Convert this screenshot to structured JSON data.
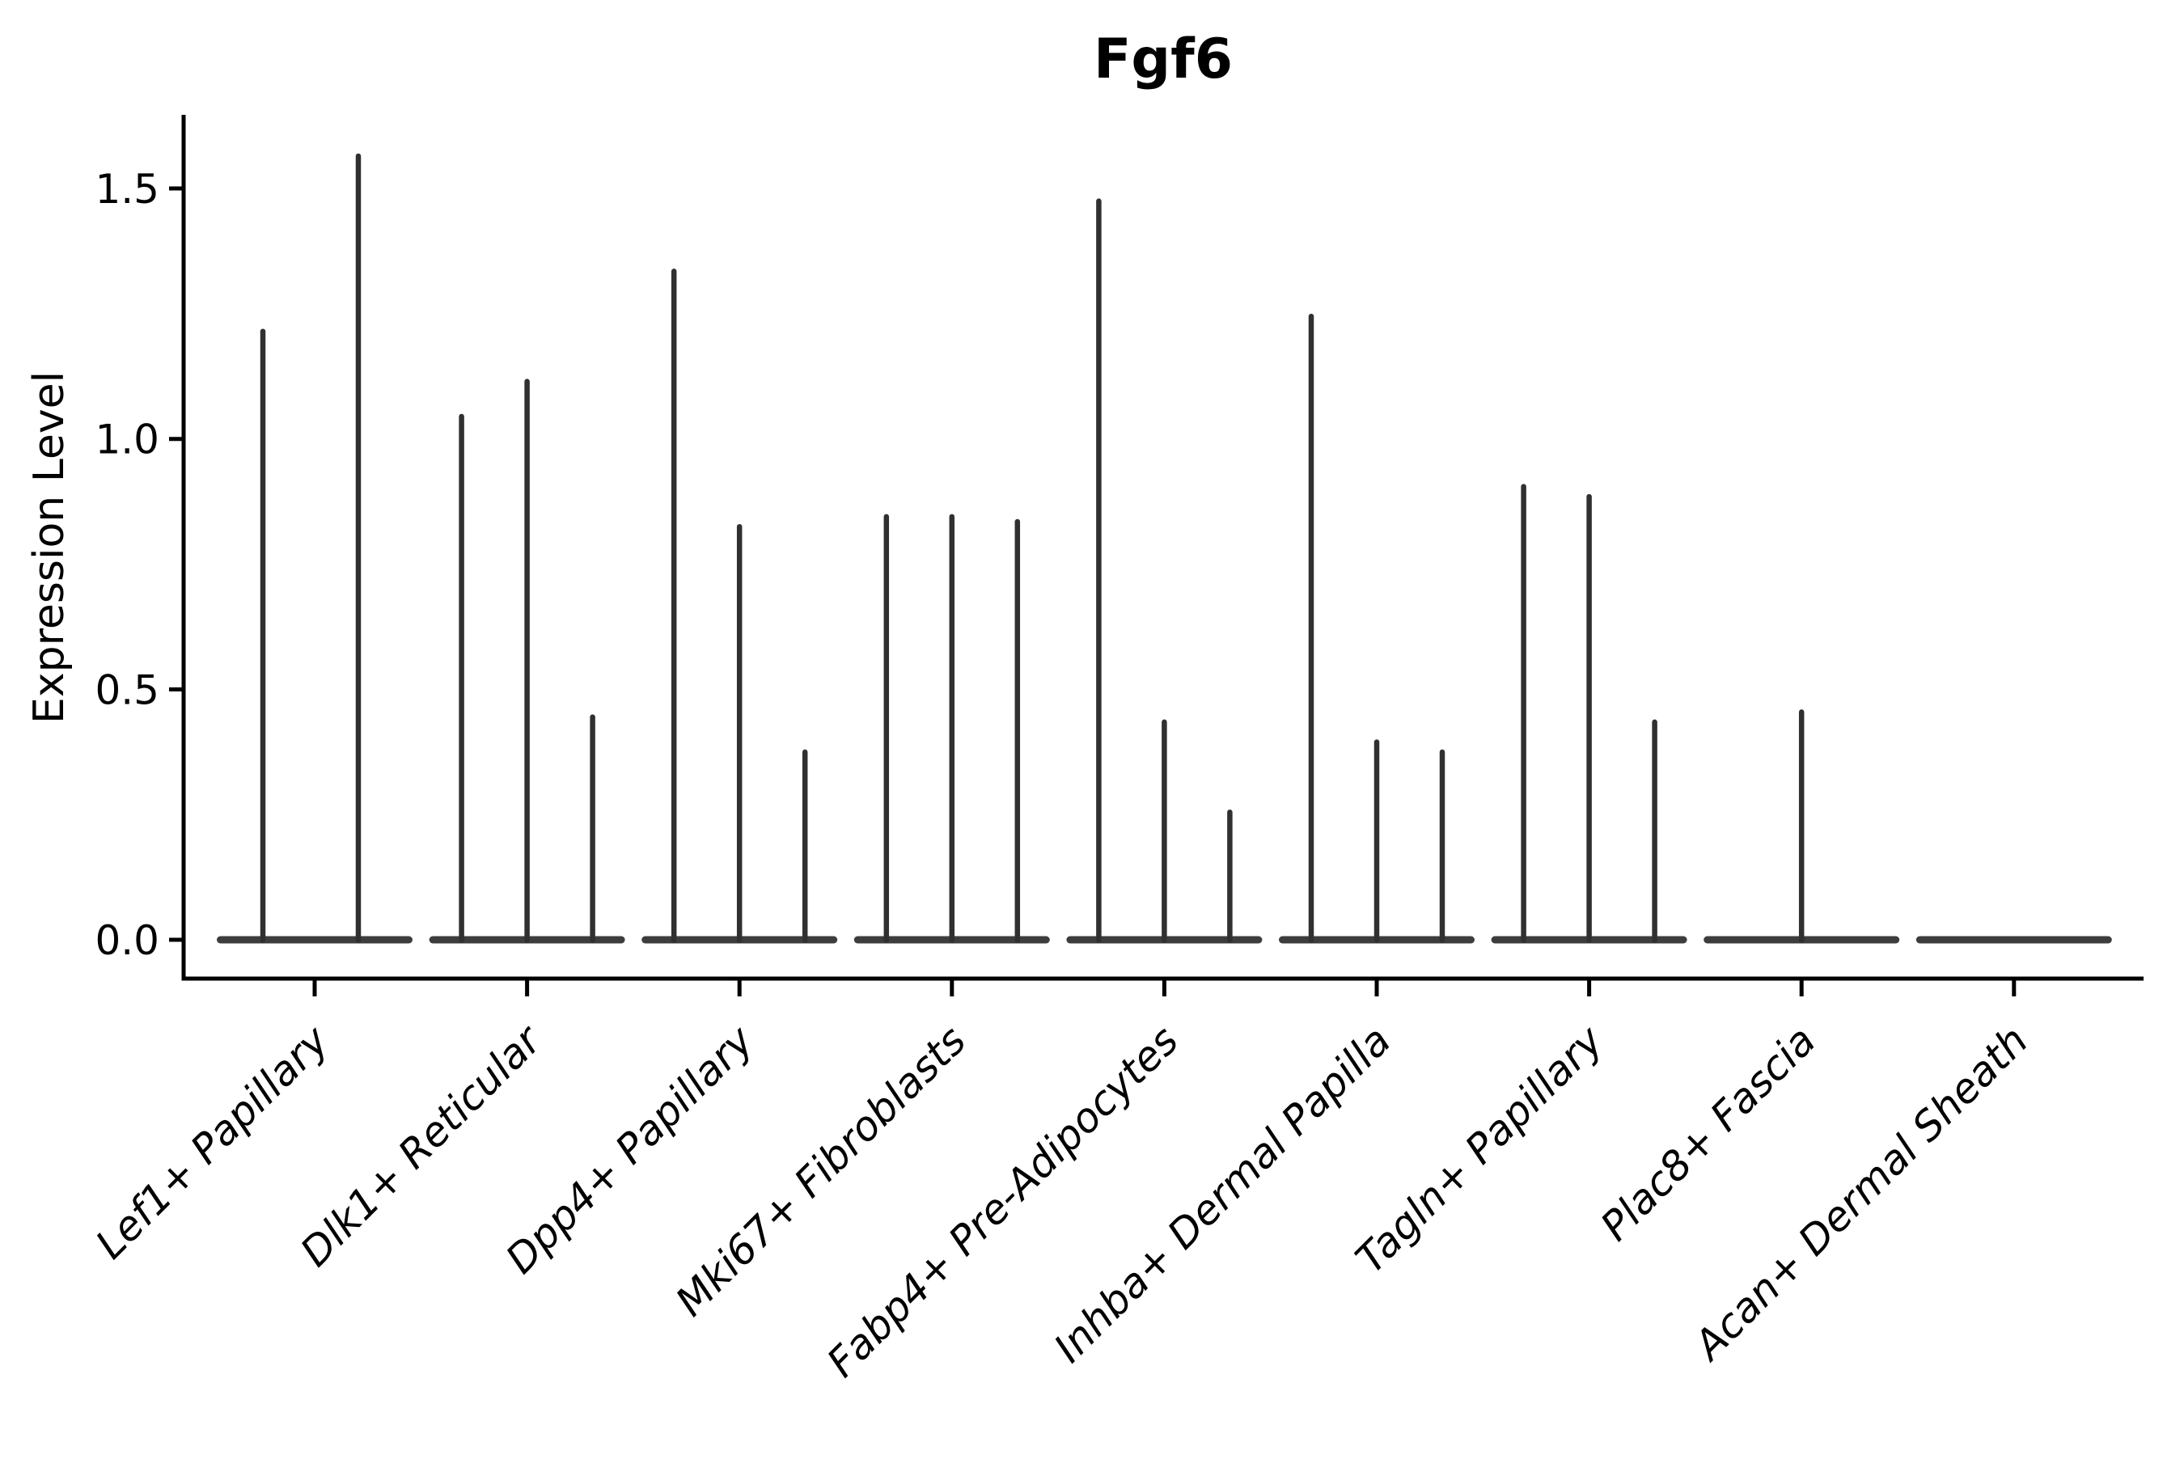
{
  "figure": {
    "title": "Fgf6",
    "ylabel": "Expression Level",
    "background_color": "#ffffff",
    "axis_color": "#000000",
    "violin_color": "#303030",
    "violin_base_color": "#3d3d3d"
  },
  "chart_data": {
    "type": "violin",
    "title": "Fgf6",
    "xlabel": "",
    "ylabel": "Expression Level",
    "ytick_labels": [
      "0.0",
      "0.5",
      "1.0",
      "1.5"
    ],
    "ytick_values": [
      0.0,
      0.5,
      1.0,
      1.5
    ],
    "ylim": [
      -0.08,
      1.65
    ],
    "grid": false,
    "legend": "none",
    "xtick_label_style": "italic, rotated 45 degrees, right-anchored",
    "description": "Violin plot of Fgf6 expression per cell population. Expression is near zero for almost all cells (flat violin bases at 0) with thin spikes reaching the maximum expression value of each sub-violin.",
    "baseline_value": 0.0,
    "categories": [
      "Lef1+ Papillary",
      "Dlk1+ Reticular",
      "Dpp4+ Papillary",
      "Mki67+ Fibroblasts",
      "Fabp4+ Pre-Adipocytes",
      "Inhba+ Dermal Papilla",
      "Tagln+ Papillary",
      "Plac8+ Fascia",
      "Acan+ Dermal Sheath"
    ],
    "groups": [
      {
        "category": "Lef1+ Papillary",
        "violin_peaks": [
          1.22,
          1.57
        ]
      },
      {
        "category": "Dlk1+ Reticular",
        "violin_peaks": [
          1.05,
          1.12,
          0.45
        ]
      },
      {
        "category": "Dpp4+ Papillary",
        "violin_peaks": [
          1.34,
          0.83,
          0.38
        ]
      },
      {
        "category": "Mki67+ Fibroblasts",
        "violin_peaks": [
          0.85,
          0.85,
          0.84
        ]
      },
      {
        "category": "Fabp4+ Pre-Adipocytes",
        "violin_peaks": [
          1.48,
          0.44,
          0.26
        ]
      },
      {
        "category": "Inhba+ Dermal Papilla",
        "violin_peaks": [
          1.25,
          0.4,
          0.38
        ]
      },
      {
        "category": "Tagln+ Papillary",
        "violin_peaks": [
          0.91,
          0.89,
          0.44
        ]
      },
      {
        "category": "Plac8+ Fascia",
        "violin_peaks": [
          0.0,
          0.46,
          0.0
        ]
      },
      {
        "category": "Acan+ Dermal Sheath",
        "violin_peaks": [
          0.0,
          0.0,
          0.0
        ]
      }
    ]
  }
}
